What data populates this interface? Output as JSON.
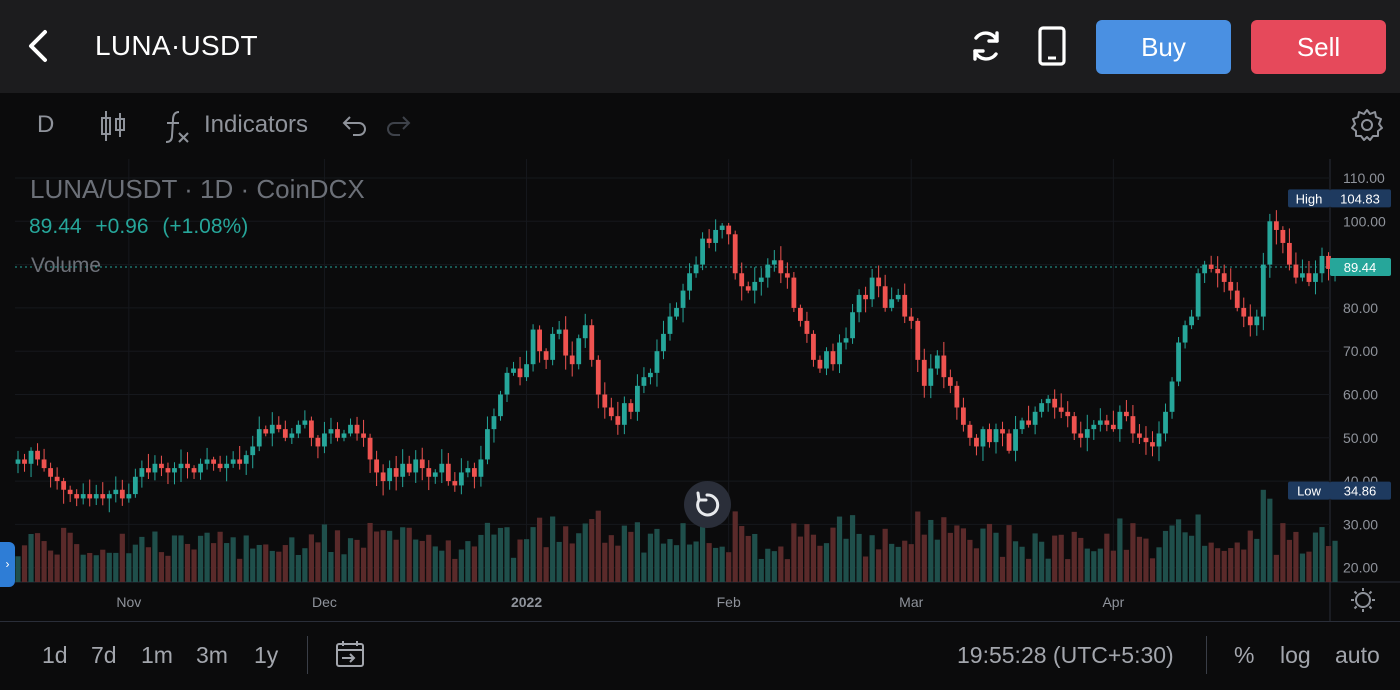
{
  "header": {
    "title": "LUNA·USDT",
    "buy_label": "Buy",
    "sell_label": "Sell"
  },
  "toolbar": {
    "interval": "D",
    "indicators_label": "Indicators"
  },
  "legend": {
    "title": "LUNA/USDT · 1D · CoinDCX",
    "last": "89.44",
    "change": "+0.96",
    "change_pct": "(+1.08%)",
    "volume_label": "Volume"
  },
  "colors": {
    "up": "#26a69a",
    "down": "#ef5350",
    "up_volume": "#1f4f4b",
    "down_volume": "#5a2a2a",
    "buy": "#4a90e2",
    "sell": "#e6495b",
    "accent_blue": "#1e3a5f"
  },
  "price_badges": {
    "high_label": "High",
    "high_value": "104.83",
    "last_value": "89.44",
    "low_label": "Low",
    "low_value": "34.86"
  },
  "bottom": {
    "ranges": [
      "1d",
      "7d",
      "1m",
      "3m",
      "1y"
    ],
    "clock": "19:55:28 (UTC+5:30)",
    "percent_label": "%",
    "log_label": "log",
    "auto_label": "auto"
  },
  "chart_data": {
    "type": "candlestick",
    "y_ticks": [
      "110.00",
      "100.00",
      "90.00",
      "80.00",
      "70.00",
      "60.00",
      "50.00",
      "40.00",
      "30.00",
      "20.00"
    ],
    "y_range": [
      20,
      110
    ],
    "x_ticks": [
      "Nov",
      "Dec",
      "2022",
      "Feb",
      "Mar",
      "Apr"
    ],
    "start_date": "2021-10-15",
    "high": 104.83,
    "low": 34.86,
    "last": 89.44,
    "grid": true,
    "close": [
      45,
      44,
      47,
      45,
      43,
      41,
      40,
      38,
      37,
      36,
      37,
      36,
      37,
      36,
      37,
      38,
      36,
      37,
      41,
      43,
      42,
      44,
      43,
      42,
      43,
      44,
      43,
      42,
      44,
      45,
      44,
      43,
      44,
      45,
      44,
      46,
      48,
      52,
      51,
      53,
      52,
      50,
      51,
      53,
      54,
      50,
      48,
      51,
      52,
      50,
      51,
      53,
      51,
      50,
      45,
      42,
      40,
      43,
      41,
      44,
      42,
      45,
      43,
      41,
      42,
      44,
      40,
      39,
      42,
      43,
      41,
      45,
      52,
      55,
      60,
      65,
      66,
      64,
      67,
      75,
      70,
      68,
      74,
      75,
      69,
      67,
      73,
      76,
      68,
      60,
      57,
      55,
      53,
      58,
      56,
      62,
      64,
      65,
      70,
      74,
      78,
      80,
      84,
      88,
      90,
      96,
      95,
      98,
      99,
      97,
      88,
      85,
      84,
      86,
      87,
      90,
      91,
      88,
      87,
      80,
      77,
      74,
      68,
      66,
      70,
      67,
      72,
      73,
      79,
      83,
      82,
      87,
      85,
      80,
      82,
      83,
      78,
      77,
      68,
      62,
      66,
      69,
      64,
      62,
      57,
      53,
      50,
      48,
      52,
      49,
      52,
      51,
      47,
      52,
      54,
      53,
      56,
      58,
      59,
      57,
      56,
      55,
      51,
      50,
      52,
      53,
      54,
      53,
      52,
      56,
      55,
      51,
      50,
      49,
      48,
      51,
      56,
      63,
      72,
      76,
      78,
      88,
      90,
      89,
      88,
      86,
      84,
      80,
      78,
      76,
      78,
      90,
      100,
      98,
      95,
      90,
      87,
      88,
      86,
      88,
      92,
      89,
      90
    ]
  }
}
